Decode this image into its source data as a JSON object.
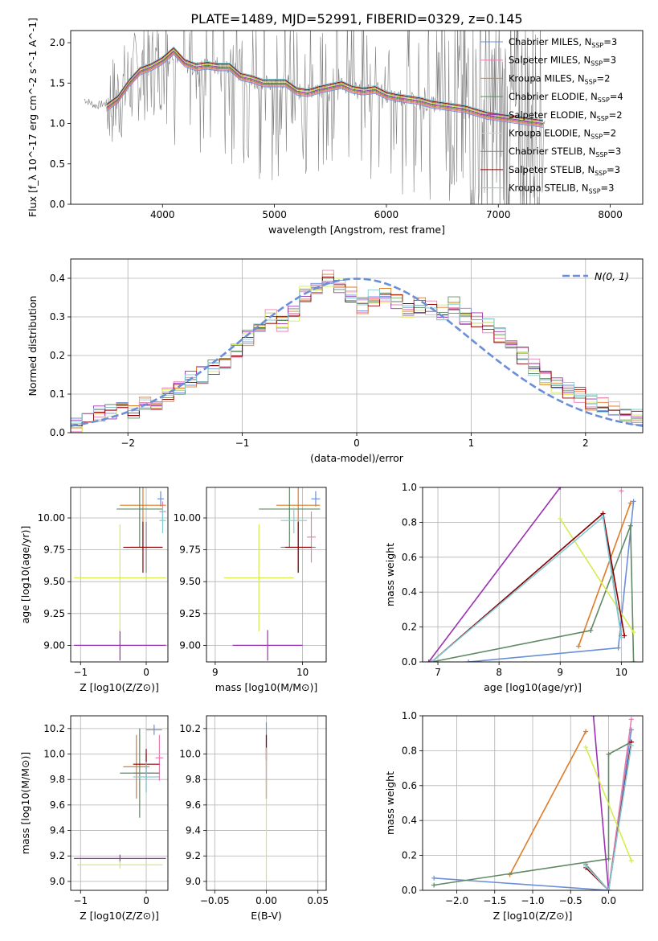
{
  "title": "PLATE=1489, MJD=52991, FIBERID=0329, z=0.145",
  "colors": {
    "chabrier_miles": "#6a8fd8",
    "salpeter_miles": "#e87fb2",
    "kroupa_miles": "#e07b27",
    "chabrier_elodie": "#5f8a64",
    "salpeter_elodie": "#9a31b3",
    "kroupa_elodie": "#d6ec4d",
    "chabrier_stelib": "#7f7f7f",
    "salpeter_stelib": "#8b0000",
    "kroupa_stelib": "#83cbd6",
    "normal": "#6a8fd8",
    "grid": "#b0b0b0"
  },
  "legend_labels": [
    "Chabrier MILES, N",
    "Salpeter MILES, N",
    "Kroupa MILES, N",
    "Chabrier ELODIE, N",
    "Salpeter ELODIE, N",
    "Kroupa ELODIE, N",
    "Chabrier STELIB, N",
    "Salpeter STELIB, N",
    "Kroupa STELIB, N"
  ],
  "legend_sub": "SSP",
  "legend_n": [
    "=3",
    "=3",
    "=2",
    "=4",
    "=2",
    "=2",
    "=3",
    "=3",
    "=3"
  ],
  "chart_data": [
    {
      "type": "line",
      "name": "spectrum",
      "xlabel": "wavelength [Angstrom, rest frame]",
      "ylabel": "Flux [f_λ 10^-17 erg cm^-2 s^-1 A^-1]",
      "xlim": [
        3180,
        8290
      ],
      "ylim": [
        0,
        2.15
      ],
      "xticks": [
        4000,
        5000,
        6000,
        7000,
        8000
      ],
      "yticks": [
        0.0,
        0.5,
        1.0,
        1.5,
        2.0
      ],
      "grid": false,
      "legend": "top-right",
      "data_x": [
        3300,
        3400,
        3500,
        3600,
        3700,
        3800,
        3900,
        4000,
        4100,
        4200,
        4300,
        4400,
        4500,
        4600,
        4700,
        4800,
        4900,
        5000,
        5100,
        5200,
        5300,
        5400,
        5500,
        5600,
        5700,
        5800,
        5900,
        6000,
        6100,
        6200,
        6300,
        6400,
        6500,
        6600,
        6700,
        6800,
        6900,
        7000,
        7100,
        7200,
        7300,
        7400
      ],
      "data_y": [
        1.3,
        1.22,
        1.25,
        1.3,
        1.5,
        1.62,
        1.65,
        1.75,
        1.88,
        1.72,
        1.68,
        1.72,
        1.68,
        1.72,
        1.6,
        1.5,
        1.52,
        1.48,
        1.55,
        1.38,
        1.42,
        1.38,
        1.45,
        1.5,
        1.42,
        1.45,
        1.45,
        1.35,
        1.32,
        1.3,
        1.25,
        1.24,
        1.22,
        1.18,
        1.15,
        1.12,
        1.05,
        1.02,
        1.05,
        1.1,
        1.0,
        1.02
      ],
      "model_y": [
        null,
        null,
        1.2,
        1.3,
        1.5,
        1.65,
        1.7,
        1.78,
        1.9,
        1.75,
        1.7,
        1.72,
        1.7,
        1.7,
        1.58,
        1.55,
        1.5,
        1.5,
        1.5,
        1.4,
        1.38,
        1.42,
        1.45,
        1.48,
        1.42,
        1.4,
        1.42,
        1.35,
        1.32,
        1.3,
        1.28,
        1.24,
        1.22,
        1.2,
        1.18,
        1.14,
        1.1,
        1.08,
        1.06,
        1.04,
        1.02,
        1.0
      ]
    },
    {
      "type": "histogram",
      "name": "residuals",
      "xlabel": "(data-model)/error",
      "ylabel": "Normed distribution",
      "xlim": [
        -2.5,
        2.5
      ],
      "ylim": [
        0,
        0.45
      ],
      "xticks": [
        -2,
        -1,
        0,
        1,
        2
      ],
      "yticks": [
        0.0,
        0.1,
        0.2,
        0.3,
        0.4
      ],
      "grid": true,
      "legend": "top-right",
      "normal_label": "N(0, 1)",
      "bin_edges_start": -2.5,
      "bin_width": 0.1,
      "densities": [
        0.02,
        0.03,
        0.05,
        0.055,
        0.06,
        0.06,
        0.07,
        0.08,
        0.1,
        0.115,
        0.14,
        0.15,
        0.17,
        0.185,
        0.21,
        0.245,
        0.28,
        0.3,
        0.28,
        0.31,
        0.36,
        0.37,
        0.4,
        0.38,
        0.36,
        0.33,
        0.35,
        0.36,
        0.34,
        0.32,
        0.33,
        0.32,
        0.31,
        0.33,
        0.3,
        0.29,
        0.28,
        0.25,
        0.22,
        0.2,
        0.17,
        0.14,
        0.12,
        0.11,
        0.1,
        0.08,
        0.07,
        0.06,
        0.05,
        0.04
      ]
    },
    {
      "type": "errorbar",
      "name": "age_vs_Z",
      "xlabel": "Z [log10(Z/Z⊙)]",
      "ylabel": "age [log10(age/yr)]",
      "xlim": [
        -1.15,
        0.33
      ],
      "ylim": [
        8.87,
        10.24
      ],
      "xticks": [
        -1,
        0
      ],
      "yticks": [
        9.0,
        9.25,
        9.5,
        9.75,
        10.0
      ],
      "grid": true,
      "points": [
        {
          "k": "chabrier_miles",
          "x": 0.22,
          "xerr": 0.05,
          "y": 10.15,
          "yerr": 0.06
        },
        {
          "k": "salpeter_miles",
          "x": 0.25,
          "xerr": 0.05,
          "y": 10.05,
          "yerr": 0.08
        },
        {
          "k": "kroupa_miles",
          "x": -0.05,
          "xerr": 0.35,
          "y": 10.1,
          "yerr": 0.35
        },
        {
          "k": "chabrier_elodie",
          "x": -0.1,
          "xerr": 0.35,
          "y": 10.07,
          "yerr": 0.3
        },
        {
          "k": "salpeter_elodie",
          "x": -0.4,
          "xerr": 0.7,
          "y": 9.0,
          "yerr": 0.12
        },
        {
          "k": "kroupa_elodie",
          "x": -0.4,
          "xerr": 0.7,
          "y": 9.53,
          "yerr": 0.42
        },
        {
          "k": "chabrier_stelib",
          "x": 0.0,
          "xerr": 0.25,
          "y": 9.77,
          "yerr": 0.2
        },
        {
          "k": "salpeter_stelib",
          "x": -0.05,
          "xerr": 0.3,
          "y": 9.77,
          "yerr": 0.2
        },
        {
          "k": "kroupa_stelib",
          "x": 0.25,
          "xerr": 0.05,
          "y": 9.98,
          "yerr": 0.1
        }
      ]
    },
    {
      "type": "errorbar",
      "name": "age_vs_mass",
      "xlabel": "mass [log10(M/M⊙)]",
      "ylabel": "",
      "xlim": [
        8.9,
        10.27
      ],
      "ylim": [
        8.87,
        10.24
      ],
      "xticks": [
        9,
        10
      ],
      "yticks": [
        9.0,
        9.25,
        9.5,
        9.75,
        10.0
      ],
      "grid": true,
      "points": [
        {
          "k": "chabrier_miles",
          "x": 10.15,
          "xerr": 0.05,
          "y": 10.15,
          "yerr": 0.06
        },
        {
          "k": "salpeter_miles",
          "x": 10.1,
          "xerr": 0.05,
          "y": 9.85,
          "yerr": 0.2
        },
        {
          "k": "kroupa_miles",
          "x": 9.95,
          "xerr": 0.25,
          "y": 10.1,
          "yerr": 0.35
        },
        {
          "k": "chabrier_elodie",
          "x": 9.85,
          "xerr": 0.35,
          "y": 10.07,
          "yerr": 0.3
        },
        {
          "k": "salpeter_elodie",
          "x": 9.6,
          "xerr": 0.4,
          "y": 9.0,
          "yerr": 0.12
        },
        {
          "k": "kroupa_elodie",
          "x": 9.5,
          "xerr": 0.4,
          "y": 9.53,
          "yerr": 0.42
        },
        {
          "k": "chabrier_stelib",
          "x": 9.95,
          "xerr": 0.2,
          "y": 9.77,
          "yerr": 0.2
        },
        {
          "k": "salpeter_stelib",
          "x": 9.95,
          "xerr": 0.15,
          "y": 9.77,
          "yerr": 0.2
        },
        {
          "k": "kroupa_stelib",
          "x": 9.9,
          "xerr": 0.15,
          "y": 9.98,
          "yerr": 0.1
        }
      ]
    },
    {
      "type": "line",
      "name": "mass_weight_vs_age",
      "xlabel": "age [log10(age/yr)]",
      "ylabel": "mass weight",
      "xlim": [
        6.75,
        10.35
      ],
      "ylim": [
        0,
        1.0
      ],
      "xticks": [
        7,
        8,
        9,
        10
      ],
      "yticks": [
        0.0,
        0.2,
        0.4,
        0.6,
        0.8,
        1.0
      ],
      "grid": true,
      "series": [
        {
          "k": "chabrier_miles",
          "x": [
            7.5,
            9.95,
            10.2
          ],
          "y": [
            0.0,
            0.08,
            0.92
          ]
        },
        {
          "k": "salpeter_miles",
          "x": [
            10.0
          ],
          "y": [
            0.98
          ]
        },
        {
          "k": "kroupa_miles",
          "x": [
            9.3,
            10.15
          ],
          "y": [
            0.09,
            0.91
          ]
        },
        {
          "k": "chabrier_elodie",
          "x": [
            6.9,
            9.5,
            10.15,
            10.2
          ],
          "y": [
            0.0,
            0.18,
            0.78,
            0.0
          ]
        },
        {
          "k": "salpeter_elodie",
          "x": [
            6.85,
            9.0
          ],
          "y": [
            0.0,
            1.0
          ]
        },
        {
          "k": "kroupa_elodie",
          "x": [
            9.0,
            10.2
          ],
          "y": [
            0.82,
            0.17
          ]
        },
        {
          "k": "chabrier_stelib",
          "x": [
            6.9,
            9.7,
            10.0
          ],
          "y": [
            0.0,
            0.85,
            0.15
          ]
        },
        {
          "k": "salpeter_stelib",
          "x": [
            6.9,
            9.7,
            10.05
          ],
          "y": [
            0.0,
            0.85,
            0.15
          ]
        },
        {
          "k": "kroupa_stelib",
          "x": [
            6.9,
            9.7,
            10.0
          ],
          "y": [
            0.0,
            0.83,
            0.14
          ]
        }
      ]
    },
    {
      "type": "errorbar",
      "name": "mass_vs_Z",
      "xlabel": "Z [log10(Z/Z⊙)]",
      "ylabel": "mass [log10(M/M⊙)]",
      "xlim": [
        -1.15,
        0.33
      ],
      "ylim": [
        8.93,
        10.3
      ],
      "xticks": [
        -1,
        0
      ],
      "yticks": [
        9.0,
        9.2,
        9.4,
        9.6,
        9.8,
        10.0,
        10.2
      ],
      "grid": true,
      "points": [
        {
          "k": "chabrier_miles",
          "x": 0.12,
          "xerr": 0.12,
          "y": 10.19,
          "yerr": 0.04
        },
        {
          "k": "salpeter_miles",
          "x": 0.2,
          "xerr": 0.06,
          "y": 9.97,
          "yerr": 0.18
        },
        {
          "k": "kroupa_miles",
          "x": -0.15,
          "xerr": 0.2,
          "y": 9.9,
          "yerr": 0.25
        },
        {
          "k": "chabrier_elodie",
          "x": -0.1,
          "xerr": 0.3,
          "y": 9.85,
          "yerr": 0.35
        },
        {
          "k": "salpeter_elodie",
          "x": -0.4,
          "xerr": 0.7,
          "y": 9.18,
          "yerr": 0.03
        },
        {
          "k": "kroupa_elodie",
          "x": -0.4,
          "xerr": 0.65,
          "y": 9.13,
          "yerr": 0.03
        },
        {
          "k": "chabrier_stelib",
          "x": 0.0,
          "xerr": 0.2,
          "y": 9.85,
          "yerr": 0.15
        },
        {
          "k": "salpeter_stelib",
          "x": 0.0,
          "xerr": 0.2,
          "y": 9.92,
          "yerr": 0.12
        },
        {
          "k": "kroupa_stelib",
          "x": 0.0,
          "xerr": 0.2,
          "y": 9.82,
          "yerr": 0.12
        }
      ]
    },
    {
      "type": "errorbar",
      "name": "mass_vs_EBV",
      "xlabel": "E(B-V)",
      "ylabel": "",
      "xlim": [
        -0.058,
        0.058
      ],
      "ylim": [
        8.93,
        10.3
      ],
      "xticks": [
        -0.05,
        0.0,
        0.05
      ],
      "yticks": [
        9.0,
        9.2,
        9.4,
        9.6,
        9.8,
        10.0,
        10.2
      ],
      "grid": true,
      "points": [
        {
          "k": "chabrier_miles",
          "x": 0.0,
          "xerr": 0,
          "y": 10.15,
          "yerr": 0.1
        },
        {
          "k": "salpeter_miles",
          "x": 0.0,
          "xerr": 0,
          "y": 9.9,
          "yerr": 0.25
        },
        {
          "k": "kroupa_miles",
          "x": 0.0,
          "xerr": 0,
          "y": 9.85,
          "yerr": 0.2
        },
        {
          "k": "salpeter_stelib",
          "x": 0.0,
          "xerr": 0,
          "y": 10.05,
          "yerr": 0.1
        },
        {
          "k": "kroupa_elodie",
          "x": 0.0,
          "xerr": 0,
          "y": 9.4,
          "yerr": 0.4
        },
        {
          "k": "kroupa_stelib",
          "x": 0.0,
          "xerr": 0,
          "y": 9.85,
          "yerr": 0.2
        }
      ]
    },
    {
      "type": "line",
      "name": "mass_weight_vs_Z",
      "xlabel": "Z [log10(Z/Z⊙)]",
      "ylabel": "mass weight",
      "xlim": [
        -2.45,
        0.45
      ],
      "ylim": [
        0,
        1.0
      ],
      "xticks": [
        -2.0,
        -1.5,
        -1.0,
        -0.5,
        0.0
      ],
      "yticks": [
        0.0,
        0.2,
        0.4,
        0.6,
        0.8,
        1.0
      ],
      "grid": true,
      "series": [
        {
          "k": "chabrier_miles",
          "x": [
            -2.3,
            0.0,
            0.3
          ],
          "y": [
            0.07,
            0.0,
            0.92
          ]
        },
        {
          "k": "salpeter_miles",
          "x": [
            0.0,
            0.3
          ],
          "y": [
            0.0,
            0.98
          ]
        },
        {
          "k": "kroupa_miles",
          "x": [
            -1.3,
            -0.3
          ],
          "y": [
            0.09,
            0.91
          ]
        },
        {
          "k": "chabrier_elodie",
          "x": [
            -2.3,
            0.0,
            0.0,
            0.3
          ],
          "y": [
            0.03,
            0.18,
            0.78,
            0.85
          ]
        },
        {
          "k": "salpeter_elodie",
          "x": [
            -0.2,
            0.0
          ],
          "y": [
            1.0,
            0.0
          ]
        },
        {
          "k": "kroupa_elodie",
          "x": [
            -0.3,
            0.3
          ],
          "y": [
            0.82,
            0.17
          ]
        },
        {
          "k": "chabrier_stelib",
          "x": [
            -0.3,
            0.0,
            0.3
          ],
          "y": [
            0.15,
            0.0,
            0.85
          ]
        },
        {
          "k": "salpeter_stelib",
          "x": [
            -0.3,
            0.0,
            0.3
          ],
          "y": [
            0.13,
            0.0,
            0.85
          ]
        },
        {
          "k": "kroupa_stelib",
          "x": [
            -0.3,
            0.0,
            0.3
          ],
          "y": [
            0.14,
            0.0,
            0.83
          ]
        }
      ]
    }
  ]
}
